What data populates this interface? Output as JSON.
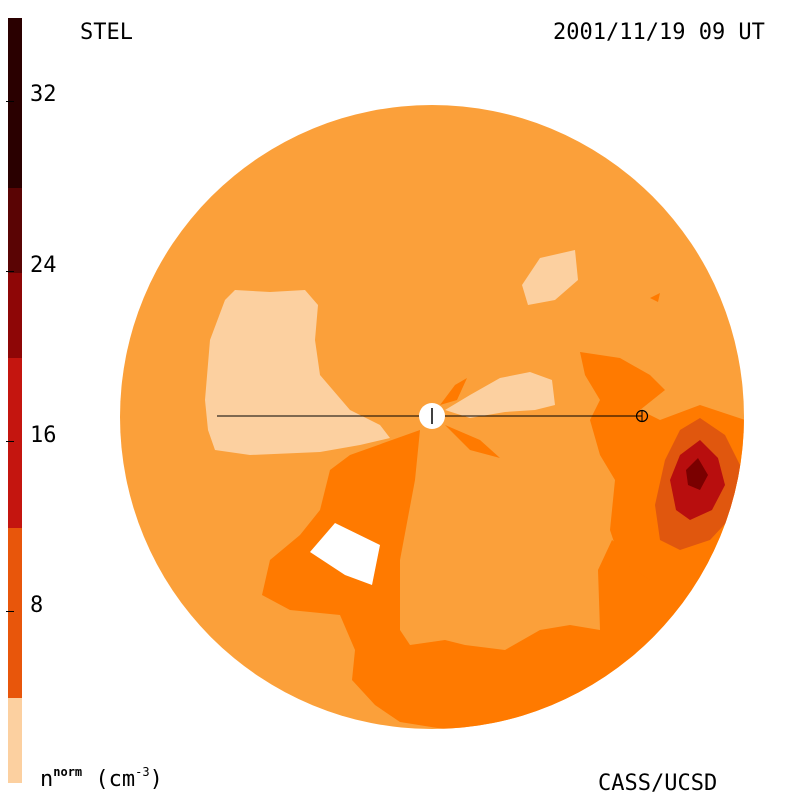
{
  "header": {
    "instrument": "STEL",
    "timestamp": "2001/11/19 09 UT"
  },
  "footer": {
    "credit": "CASS/UCSD"
  },
  "colorbar": {
    "quantity": "n",
    "superscript": "norm",
    "unit": "(cm",
    "unit_exp": "-3",
    "unit_close": ")",
    "ticks": [
      "32",
      "24",
      "16",
      "8"
    ],
    "colors": [
      "#2a0000",
      "#5a0404",
      "#8e0606",
      "#c4150f",
      "#e8560b",
      "#ff7a00",
      "#fba03a",
      "#fcd0a0"
    ]
  },
  "map": {
    "fill_colors": {
      "background": "#fba03a",
      "low": "#fcd0a0",
      "medium": "#ff7a00",
      "high": "#e0570e",
      "very_high": "#b80e0e",
      "peak": "#7a0000",
      "empty": "#ffffff"
    }
  }
}
